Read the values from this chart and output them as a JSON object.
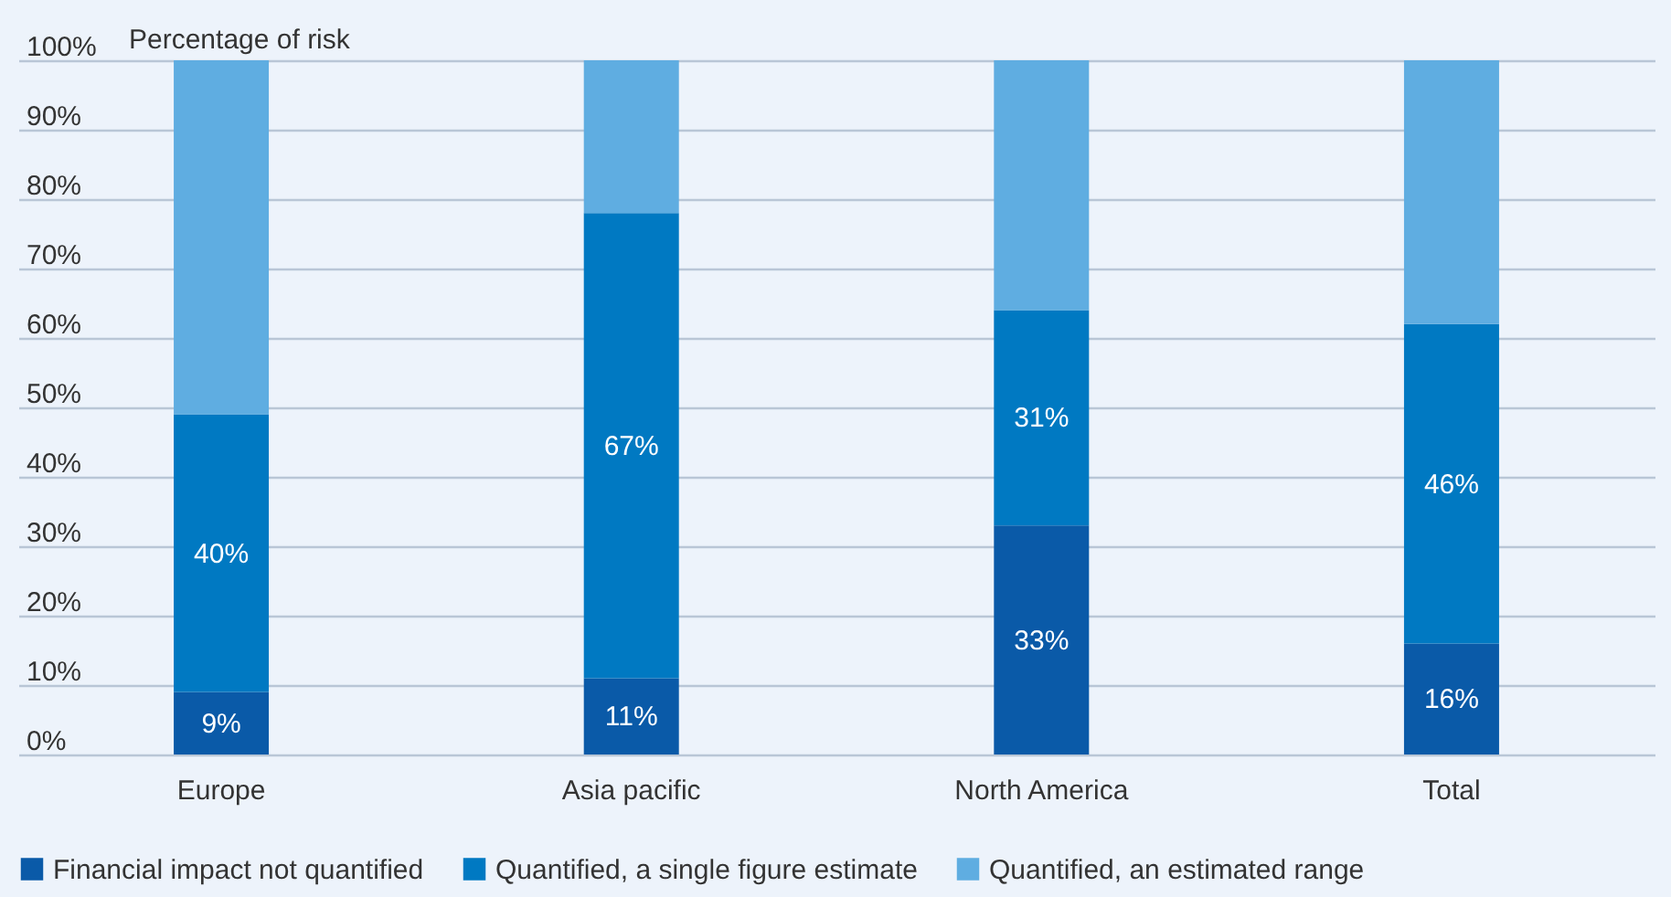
{
  "chart_data": {
    "type": "bar",
    "stacked": true,
    "ylabel": "Percentage of risk",
    "categories": [
      "Europe",
      "Asia pacific",
      "North America",
      "Total"
    ],
    "series": [
      {
        "name": "Financial impact not quantified",
        "color": "#0a5aa8",
        "values": [
          9,
          11,
          33,
          16
        ],
        "value_labels": [
          "9%",
          "11%",
          "33%",
          "16%"
        ]
      },
      {
        "name": "Quantified, a single figure estimate",
        "color": "#0079c2",
        "values": [
          40,
          67,
          31,
          46
        ],
        "value_labels": [
          "40%",
          "67%",
          "31%",
          "46%"
        ]
      },
      {
        "name": "Quantified, an estimated range",
        "color": "#5fade1",
        "values": [
          51,
          22,
          36,
          38
        ],
        "value_labels": [
          null,
          null,
          null,
          null
        ]
      }
    ],
    "ylim": [
      0,
      100
    ],
    "yticks": [
      {
        "value": 0,
        "label": "0%"
      },
      {
        "value": 10,
        "label": "10%"
      },
      {
        "value": 20,
        "label": "20%"
      },
      {
        "value": 30,
        "label": "30%"
      },
      {
        "value": 40,
        "label": "40%"
      },
      {
        "value": 50,
        "label": "50%"
      },
      {
        "value": 60,
        "label": "60%"
      },
      {
        "value": 70,
        "label": "70%"
      },
      {
        "value": 80,
        "label": "80%"
      },
      {
        "value": 90,
        "label": "90%"
      },
      {
        "value": 100,
        "label": "100%"
      }
    ],
    "grid": "y",
    "legend": "bottom"
  }
}
